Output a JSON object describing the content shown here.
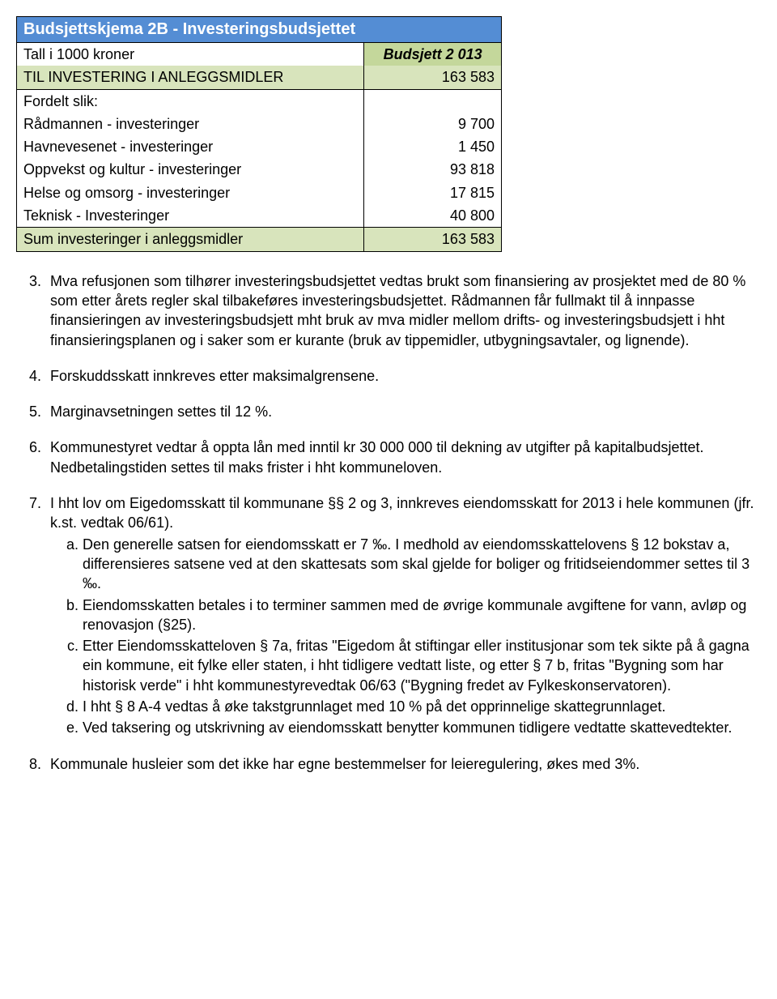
{
  "table": {
    "title": "Budsjettskjema 2B - Investeringsbudsjettet",
    "header_label": "Tall i 1000 kroner",
    "header_value": "Budsjett 2 013",
    "row1_label": "TIL INVESTERING I ANLEGGSMIDLER",
    "row1_value": "163 583",
    "row2_label": "Fordelt slik:",
    "row3_label": "Rådmannen - investeringer",
    "row3_value": "9 700",
    "row4_label": "Havnevesenet - investeringer",
    "row4_value": "1 450",
    "row5_label": "Oppvekst og kultur - investeringer",
    "row5_value": "93 818",
    "row6_label": "Helse og omsorg - investeringer",
    "row6_value": "17 815",
    "row7_label": "Teknisk - Investeringer",
    "row7_value": "40 800",
    "sum_label": "Sum investeringer i anleggsmidler",
    "sum_value": "163 583"
  },
  "items": {
    "i3": "Mva refusjonen som tilhører investeringsbudsjettet vedtas brukt som finansiering av prosjektet med de 80 % som etter årets regler skal tilbakeføres investeringsbudsjettet. Rådmannen får fullmakt til å innpasse finansieringen av investeringsbudsjett mht bruk av mva midler mellom drifts- og investeringsbudsjett i hht finansieringsplanen og i saker som er kurante (bruk av tippemidler, utbygningsavtaler, og lignende).",
    "i4": "Forskuddsskatt innkreves etter maksimalgrensene.",
    "i5": "Marginavsetningen settes til 12 %.",
    "i6": "Kommunestyret vedtar å oppta lån med inntil kr 30 000 000 til dekning av utgifter på kapitalbudsjettet. Nedbetalingstiden settes til maks frister i hht kommuneloven.",
    "i7": "I hht lov om Eigedomsskatt til kommunane §§ 2 og 3, innkreves eiendomsskatt for 2013 i hele kommunen (jfr. k.st. vedtak 06/61).",
    "i7a": "Den generelle satsen for eiendomsskatt er 7 ‰. I medhold av eiendomsskattelovens § 12 bokstav a, differensieres satsene ved at den skattesats som skal gjelde for boliger og fritidseiendommer settes til 3 ‰.",
    "i7b": "Eiendomsskatten betales i to terminer sammen med de øvrige kommunale avgiftene for vann, avløp og renovasjon (§25).",
    "i7c": "Etter Eiendomsskatteloven § 7a, fritas \"Eigedom åt stiftingar eller institusjonar som tek sikte på å gagna ein kommune, eit fylke eller staten, i hht tidligere vedtatt liste, og etter § 7 b, fritas \"Bygning som har historisk verde\"  i hht kommunestyrevedtak 06/63 (\"Bygning fredet av Fylkeskonservatoren).",
    "i7d": "I hht § 8 A-4 vedtas å øke takstgrunnlaget med 10 % på det opprinnelige skattegrunnlaget.",
    "i7e": "Ved taksering og utskrivning av eiendomsskatt benytter kommunen tidligere vedtatte skattevedtekter.",
    "i8": "Kommunale husleier som det ikke har egne bestemmelser for leieregulering, økes med 3%."
  }
}
